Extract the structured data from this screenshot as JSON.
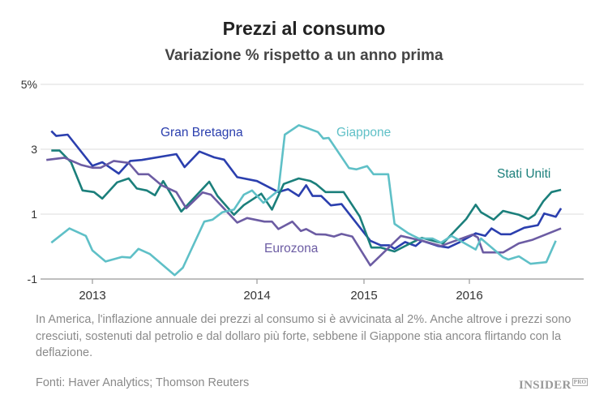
{
  "header": {
    "title": "Prezzi al consumo",
    "subtitle": "Variazione % rispetto a un anno prima"
  },
  "footer": {
    "caption": "In America, l'inflazione annuale dei prezzi al consumo si è avvicinata al 2%. Anche altrove i prezzi sono cresciuti, sostenuti dal petrolio e dal dollaro più forte, sebbene il Giappone stia ancora flirtando con la deflazione.",
    "source": "Fonti:  Haver Analytics; Thomson Reuters",
    "logo": "INSIDER",
    "logo_suffix": "PRO"
  },
  "chart_data": {
    "type": "line",
    "title": "Prezzi al consumo",
    "subtitle": "Variazione % rispetto a un anno prima",
    "xlabel": "",
    "ylabel": "",
    "ylim": [
      -1,
      5
    ],
    "yticks": [
      5,
      3,
      1,
      -1
    ],
    "ytick_labels": [
      "5%",
      "3",
      "1",
      "-1"
    ],
    "xticks": [
      2013,
      2014,
      2015,
      2016
    ],
    "xtick_labels": [
      "2013",
      "2014",
      "2015",
      "2016"
    ],
    "grid": "horizontal",
    "legend": "inline labels",
    "series": [
      {
        "name": "Gran Bretagna",
        "color": "#2b3fae",
        "points": [
          [
            2012.75,
            3.56
          ],
          [
            2012.78,
            3.41
          ],
          [
            2012.85,
            3.45
          ],
          [
            2013.0,
            2.49
          ],
          [
            2013.06,
            2.6
          ],
          [
            2013.16,
            2.25
          ],
          [
            2013.23,
            2.64
          ],
          [
            2013.3,
            2.67
          ],
          [
            2013.51,
            2.85
          ],
          [
            2013.56,
            2.45
          ],
          [
            2013.65,
            2.93
          ],
          [
            2013.74,
            2.75
          ],
          [
            2013.8,
            2.68
          ],
          [
            2013.88,
            2.14
          ],
          [
            2014.0,
            2.02
          ],
          [
            2014.2,
            1.68
          ],
          [
            2014.29,
            1.77
          ],
          [
            2014.39,
            1.56
          ],
          [
            2014.46,
            1.89
          ],
          [
            2014.52,
            1.56
          ],
          [
            2014.6,
            1.56
          ],
          [
            2014.69,
            1.27
          ],
          [
            2014.79,
            1.31
          ],
          [
            2015.06,
            0.18
          ],
          [
            2015.16,
            0.04
          ],
          [
            2015.24,
            0.04
          ],
          [
            2015.29,
            -0.07
          ],
          [
            2015.39,
            0.14
          ],
          [
            2015.49,
            0.02
          ],
          [
            2015.55,
            0.18
          ],
          [
            2015.7,
            0.02
          ],
          [
            2015.8,
            -0.03
          ],
          [
            2015.91,
            0.14
          ],
          [
            2016.06,
            0.41
          ],
          [
            2016.15,
            0.33
          ],
          [
            2016.21,
            0.56
          ],
          [
            2016.3,
            0.38
          ],
          [
            2016.39,
            0.38
          ],
          [
            2016.52,
            0.58
          ],
          [
            2016.65,
            0.66
          ],
          [
            2016.71,
            1.02
          ],
          [
            2016.82,
            0.92
          ],
          [
            2016.87,
            1.18
          ]
        ]
      },
      {
        "name": "Stati Uniti",
        "color": "#1b7f7b",
        "points": [
          [
            2012.75,
            2.96
          ],
          [
            2012.8,
            2.96
          ],
          [
            2012.87,
            2.6
          ],
          [
            2012.94,
            1.73
          ],
          [
            2013.01,
            1.68
          ],
          [
            2013.06,
            1.48
          ],
          [
            2013.15,
            1.98
          ],
          [
            2013.22,
            2.1
          ],
          [
            2013.27,
            1.79
          ],
          [
            2013.33,
            1.73
          ],
          [
            2013.38,
            1.58
          ],
          [
            2013.43,
            2.02
          ],
          [
            2013.54,
            1.08
          ],
          [
            2013.71,
            2.0
          ],
          [
            2013.76,
            1.56
          ],
          [
            2013.86,
            0.98
          ],
          [
            2013.92,
            1.28
          ],
          [
            2014.04,
            1.63
          ],
          [
            2014.14,
            1.14
          ],
          [
            2014.25,
            1.93
          ],
          [
            2014.39,
            2.1
          ],
          [
            2014.5,
            2.02
          ],
          [
            2014.55,
            1.93
          ],
          [
            2014.64,
            1.68
          ],
          [
            2014.81,
            1.68
          ],
          [
            2014.96,
            0.93
          ],
          [
            2015.07,
            -0.03
          ],
          [
            2015.16,
            -0.03
          ],
          [
            2015.29,
            -0.15
          ],
          [
            2015.44,
            0.1
          ],
          [
            2015.55,
            0.27
          ],
          [
            2015.75,
            0.1
          ],
          [
            2015.97,
            0.85
          ],
          [
            2016.06,
            1.29
          ],
          [
            2016.11,
            1.06
          ],
          [
            2016.23,
            0.83
          ],
          [
            2016.32,
            1.1
          ],
          [
            2016.47,
            0.98
          ],
          [
            2016.56,
            0.85
          ],
          [
            2016.62,
            0.98
          ],
          [
            2016.7,
            1.39
          ],
          [
            2016.78,
            1.68
          ],
          [
            2016.87,
            1.75
          ]
        ]
      },
      {
        "name": "Eurozona",
        "color": "#6c5ca3",
        "points": [
          [
            2012.72,
            2.67
          ],
          [
            2012.83,
            2.74
          ],
          [
            2012.93,
            2.52
          ],
          [
            2013.0,
            2.43
          ],
          [
            2013.05,
            2.43
          ],
          [
            2013.13,
            2.64
          ],
          [
            2013.22,
            2.58
          ],
          [
            2013.28,
            2.23
          ],
          [
            2013.34,
            2.23
          ],
          [
            2013.42,
            1.89
          ],
          [
            2013.51,
            1.68
          ],
          [
            2013.57,
            1.18
          ],
          [
            2013.67,
            1.67
          ],
          [
            2013.72,
            1.6
          ],
          [
            2013.88,
            0.74
          ],
          [
            2013.94,
            0.88
          ],
          [
            2014.07,
            0.77
          ],
          [
            2014.14,
            0.77
          ],
          [
            2014.2,
            0.54
          ],
          [
            2014.33,
            0.77
          ],
          [
            2014.41,
            0.48
          ],
          [
            2014.46,
            0.54
          ],
          [
            2014.55,
            0.38
          ],
          [
            2014.64,
            0.37
          ],
          [
            2014.72,
            0.31
          ],
          [
            2014.79,
            0.39
          ],
          [
            2014.89,
            0.31
          ],
          [
            2015.06,
            -0.58
          ],
          [
            2015.35,
            0.33
          ],
          [
            2015.55,
            0.18
          ],
          [
            2015.73,
            0.02
          ],
          [
            2016.03,
            0.37
          ],
          [
            2016.08,
            0.28
          ],
          [
            2016.13,
            -0.18
          ],
          [
            2016.32,
            -0.18
          ],
          [
            2016.47,
            0.1
          ],
          [
            2016.6,
            0.21
          ],
          [
            2016.87,
            0.56
          ]
        ]
      },
      {
        "name": "Giappone",
        "color": "#5fc0c7",
        "points": [
          [
            2012.75,
            0.12
          ],
          [
            2012.86,
            0.56
          ],
          [
            2012.96,
            0.33
          ],
          [
            2013.0,
            -0.12
          ],
          [
            2013.08,
            -0.46
          ],
          [
            2013.18,
            -0.32
          ],
          [
            2013.23,
            -0.34
          ],
          [
            2013.28,
            -0.07
          ],
          [
            2013.35,
            -0.23
          ],
          [
            2013.5,
            -0.88
          ],
          [
            2013.55,
            -0.65
          ],
          [
            2013.68,
            0.77
          ],
          [
            2013.73,
            0.83
          ],
          [
            2013.79,
            1.06
          ],
          [
            2013.86,
            1.14
          ],
          [
            2013.92,
            1.6
          ],
          [
            2013.97,
            1.73
          ],
          [
            2014.06,
            1.35
          ],
          [
            2014.2,
            1.73
          ],
          [
            2014.26,
            3.45
          ],
          [
            2014.39,
            3.74
          ],
          [
            2014.48,
            3.64
          ],
          [
            2014.57,
            3.53
          ],
          [
            2014.62,
            3.33
          ],
          [
            2014.67,
            3.35
          ],
          [
            2014.86,
            2.42
          ],
          [
            2014.93,
            2.38
          ],
          [
            2015.03,
            2.48
          ],
          [
            2015.09,
            2.23
          ],
          [
            2015.23,
            2.23
          ],
          [
            2015.29,
            0.7
          ],
          [
            2015.42,
            0.41
          ],
          [
            2015.52,
            0.25
          ],
          [
            2015.65,
            0.25
          ],
          [
            2015.73,
            0.12
          ],
          [
            2015.83,
            0.33
          ],
          [
            2016.06,
            -0.09
          ],
          [
            2016.11,
            0.25
          ],
          [
            2016.32,
            -0.33
          ],
          [
            2016.37,
            -0.4
          ],
          [
            2016.47,
            -0.3
          ],
          [
            2016.58,
            -0.53
          ],
          [
            2016.73,
            -0.48
          ],
          [
            2016.82,
            0.18
          ]
        ]
      }
    ]
  }
}
